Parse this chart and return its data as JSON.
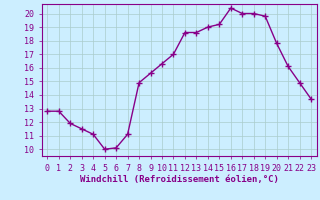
{
  "x": [
    0,
    1,
    2,
    3,
    4,
    5,
    6,
    7,
    8,
    9,
    10,
    11,
    12,
    13,
    14,
    15,
    16,
    17,
    18,
    19,
    20,
    21,
    22,
    23
  ],
  "y": [
    12.8,
    12.8,
    11.9,
    11.5,
    11.1,
    10.0,
    10.1,
    11.1,
    14.9,
    15.6,
    16.3,
    17.0,
    18.6,
    18.6,
    19.0,
    19.2,
    20.4,
    20.0,
    20.0,
    19.8,
    17.8,
    16.1,
    14.9,
    13.7
  ],
  "line_color": "#880088",
  "marker": "+",
  "markersize": 4,
  "linewidth": 1.0,
  "xlabel": "Windchill (Refroidissement éolien,°C)",
  "xlim": [
    -0.5,
    23.5
  ],
  "ylim": [
    9.5,
    20.7
  ],
  "yticks": [
    10,
    11,
    12,
    13,
    14,
    15,
    16,
    17,
    18,
    19,
    20
  ],
  "xticks": [
    0,
    1,
    2,
    3,
    4,
    5,
    6,
    7,
    8,
    9,
    10,
    11,
    12,
    13,
    14,
    15,
    16,
    17,
    18,
    19,
    20,
    21,
    22,
    23
  ],
  "grid_color": "#aacccc",
  "bg_color": "#cceeff",
  "label_color": "#880088",
  "xlabel_fontsize": 6.5,
  "tick_fontsize": 6.0,
  "fig_width": 3.2,
  "fig_height": 2.0,
  "fig_dpi": 100
}
